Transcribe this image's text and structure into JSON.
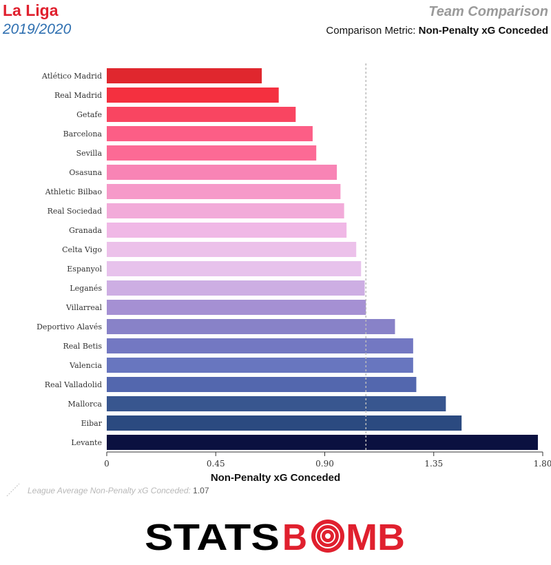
{
  "header": {
    "league": "La Liga",
    "season": "2019/2020",
    "title": "Team Comparison",
    "metric_prefix": "Comparison Metric:",
    "metric_name": "Non-Penalty xG Conceded"
  },
  "legend": {
    "avg_label": "League Average Non-Penalty xG Conceded:",
    "avg_value": "1.07"
  },
  "brand": {
    "left": "STATS",
    "right_start": "B",
    "right_mid": "MB",
    "o_icon": "target-icon"
  },
  "chart_data": {
    "type": "bar",
    "orientation": "horizontal",
    "xlabel": "Non-Penalty xG Conceded",
    "xlim": [
      0,
      1.8
    ],
    "xticks": [
      "0",
      "0.45",
      "0.90",
      "1.35",
      "1.80"
    ],
    "reference_line": 1.07,
    "grid": false,
    "categories": [
      "Atlético Madrid",
      "Real Madrid",
      "Getafe",
      "Barcelona",
      "Sevilla",
      "Osasuna",
      "Athletic Bilbao",
      "Real Sociedad",
      "Granada",
      "Celta Vigo",
      "Espanyol",
      "Leganés",
      "Villarreal",
      "Deportivo Alavés",
      "Real Betis",
      "Valencia",
      "Real Valladolid",
      "Mallorca",
      "Eibar",
      "Levante"
    ],
    "values": [
      0.64,
      0.71,
      0.78,
      0.85,
      0.865,
      0.95,
      0.965,
      0.98,
      0.99,
      1.03,
      1.05,
      1.065,
      1.07,
      1.19,
      1.265,
      1.265,
      1.278,
      1.4,
      1.465,
      1.78
    ],
    "colors": [
      "#e0272e",
      "#f4303f",
      "#f94561",
      "#fc5e86",
      "#fc6a95",
      "#f884b5",
      "#f69ac9",
      "#f2abd9",
      "#f0b8e6",
      "#ecc1ea",
      "#e7c2ec",
      "#cdaee3",
      "#a590d3",
      "#8882c8",
      "#7378c2",
      "#6876bf",
      "#5367ae",
      "#38568f",
      "#2b4a80",
      "#0b1140"
    ]
  }
}
